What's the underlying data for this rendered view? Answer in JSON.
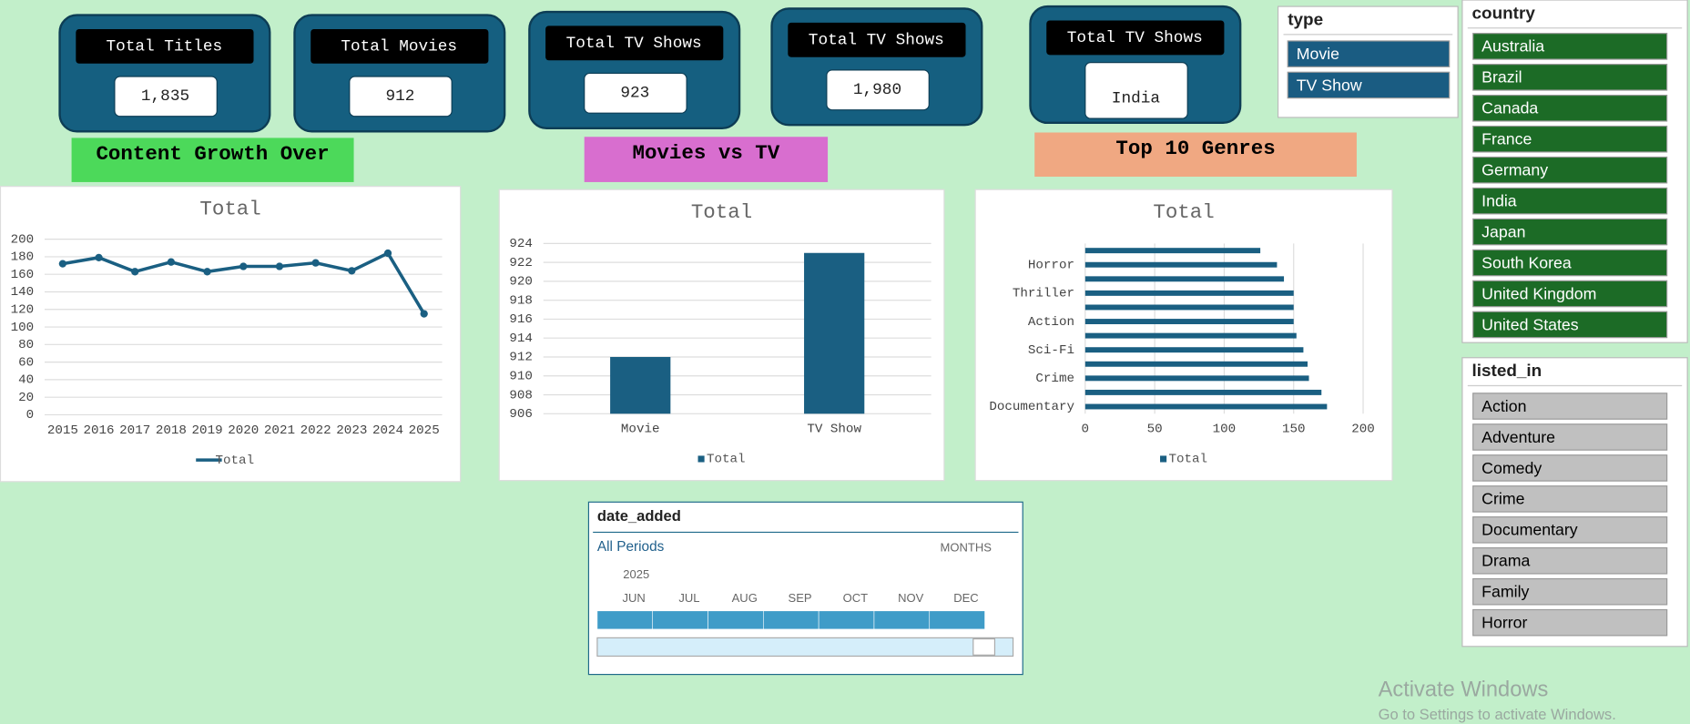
{
  "cards": [
    {
      "label": "Total Titles",
      "value": "1,835"
    },
    {
      "label": "Total Movies",
      "value": "912"
    },
    {
      "label": "Total TV Shows",
      "value": "923"
    },
    {
      "label": "Total TV Shows",
      "value": "1,980"
    },
    {
      "label": "Total TV Shows",
      "value": "India"
    }
  ],
  "banners": [
    "Content Growth Over",
    "Movies vs TV",
    "Top 10 Genres"
  ],
  "chart_data": [
    {
      "type": "line",
      "title": "Total",
      "categories": [
        "2015",
        "2016",
        "2017",
        "2018",
        "2019",
        "2020",
        "2021",
        "2022",
        "2023",
        "2024",
        "2025"
      ],
      "series": [
        {
          "name": "Total",
          "color": "#1a5f82",
          "values": [
            172,
            179,
            163,
            174,
            163,
            169,
            169,
            173,
            164,
            184,
            115
          ]
        }
      ],
      "ylim": [
        0,
        200
      ],
      "yticks": [
        0,
        20,
        40,
        60,
        80,
        100,
        120,
        140,
        160,
        180,
        200
      ],
      "grid": true
    },
    {
      "type": "bar",
      "title": "Total",
      "categories": [
        "Movie",
        "TV Show"
      ],
      "series": [
        {
          "name": "Total",
          "color": "#1a5f82",
          "values": [
            912,
            923
          ]
        }
      ],
      "ylim": [
        906,
        924
      ],
      "yticks": [
        906,
        908,
        910,
        912,
        914,
        916,
        918,
        920,
        922,
        924
      ],
      "grid": true
    },
    {
      "type": "hbar",
      "title": "Total",
      "categories": [
        "Documentary",
        null,
        "Crime",
        null,
        "Sci-Fi",
        null,
        "Action",
        null,
        "Thriller",
        null,
        "Horror",
        null
      ],
      "series": [
        {
          "name": "Total",
          "color": "#1a5f82",
          "values": [
            174,
            170,
            161,
            160,
            157,
            152,
            150,
            150,
            150,
            143,
            138,
            126
          ]
        }
      ],
      "xlim": [
        0,
        200
      ],
      "xticks": [
        0,
        50,
        100,
        150,
        200
      ],
      "grid": true
    }
  ],
  "slicers": {
    "type": {
      "title": "type",
      "items": [
        "Movie",
        "TV Show"
      ]
    },
    "country": {
      "title": "country",
      "items": [
        "Australia",
        "Brazil",
        "Canada",
        "France",
        "Germany",
        "India",
        "Japan",
        "South Korea",
        "United Kingdom",
        "United States"
      ]
    },
    "listed_in": {
      "title": "listed_in",
      "items": [
        "Action",
        "Adventure",
        "Comedy",
        "Crime",
        "Documentary",
        "Drama",
        "Family",
        "Horror"
      ]
    }
  },
  "timeline": {
    "title": "date_added",
    "selection": "All Periods",
    "level": "MONTHS",
    "year": "2025",
    "months": [
      "JUN",
      "JUL",
      "AUG",
      "SEP",
      "OCT",
      "NOV",
      "DEC"
    ]
  },
  "watermark": {
    "title": "Activate Windows",
    "subtitle": "Go to Settings to activate Windows."
  }
}
